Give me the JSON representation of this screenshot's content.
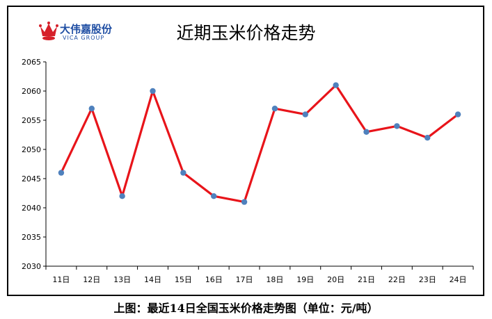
{
  "title": "近期玉米价格走势",
  "caption": "上图：最近14日全国玉米价格走势图（单位：元/吨）",
  "logo": {
    "name_cn": "大伟嘉股份",
    "name_en": "VICA GROUP",
    "icon": "crown-logo-icon"
  },
  "colors": {
    "line": "#e8141a",
    "marker": "#4f81bd",
    "axis": "#000000",
    "logo": "#1f4ea3",
    "crown": "#d6202a"
  },
  "chart_data": {
    "type": "line",
    "title": "近期玉米价格走势",
    "xlabel": "",
    "ylabel": "",
    "categories": [
      "11日",
      "12日",
      "13日",
      "14日",
      "15日",
      "16日",
      "17日",
      "18日",
      "19日",
      "20日",
      "21日",
      "22日",
      "23日",
      "24日"
    ],
    "series": [
      {
        "values": [
          2046,
          2057,
          2042,
          2060,
          2046,
          2042,
          2041,
          2057,
          2056,
          2061,
          2053,
          2054,
          2052,
          2056
        ]
      }
    ],
    "ylim": [
      2030,
      2065
    ],
    "yticks": [
      2030,
      2035,
      2040,
      2045,
      2050,
      2055,
      2060,
      2065
    ],
    "grid": false,
    "legend": "none"
  }
}
